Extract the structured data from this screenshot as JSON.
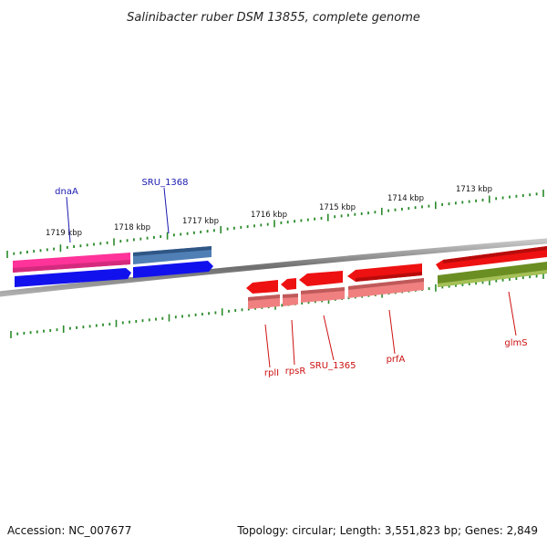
{
  "title": "Salinibacter ruber DSM 13855, complete genome",
  "footer": {
    "accession": "Accession: NC_007677",
    "summary": "Topology: circular; Length: 3,551,823 bp; Genes: 2,849"
  },
  "scale_labels": [
    "1719 kbp",
    "1718 kbp",
    "1717 kbp",
    "1716 kbp",
    "1715 kbp",
    "1714 kbp",
    "1713 kbp"
  ],
  "gene_labels": {
    "dnaA": "dnaA",
    "sru1368": "SRU_1368",
    "rplI": "rplI",
    "rpsR": "rpsR",
    "sru1365": "SRU_1365",
    "prfA": "prfA",
    "glmS": "glmS"
  },
  "colors": {
    "backbone": "#8a8a8a",
    "tick": "#2a8a2a",
    "label_blue": "#1a1ab0",
    "label_red": "#cc1010",
    "gene_red": "#ee1111",
    "gene_red_light": "#f08080",
    "gene_pink": "#ff3399",
    "gene_blue": "#1111ee",
    "gene_steel": "#3b6ea5",
    "gene_olive": "#6b8e23"
  }
}
